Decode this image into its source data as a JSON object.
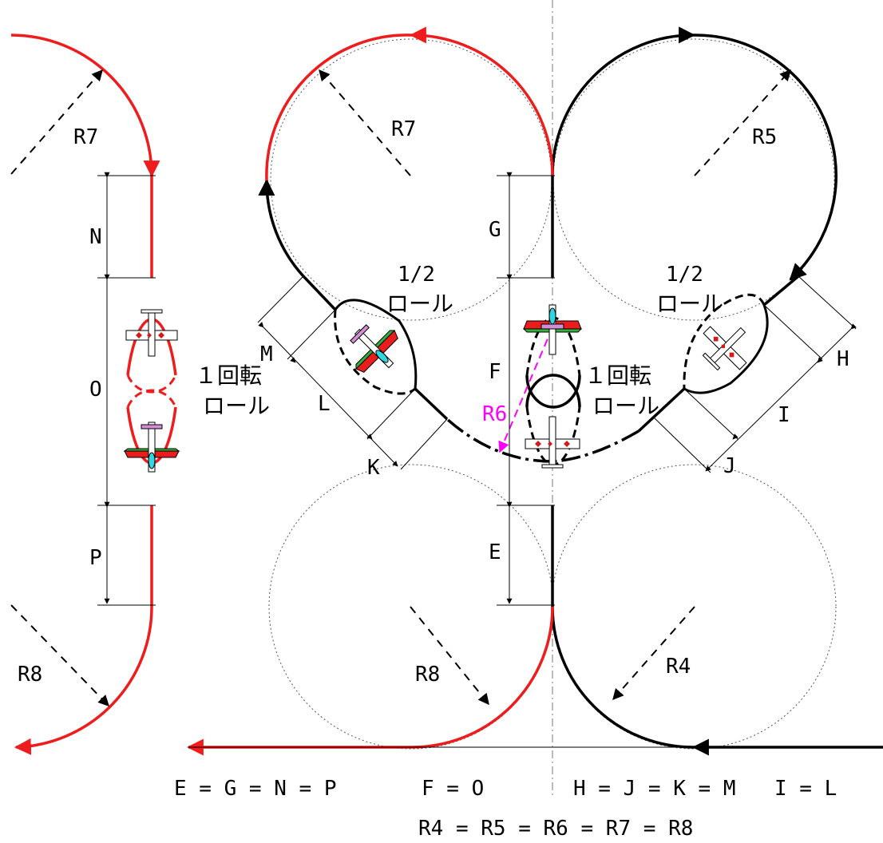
{
  "labels": {
    "E": "E",
    "F": "F",
    "G": "G",
    "H": "H",
    "I": "I",
    "J": "J",
    "K": "K",
    "L": "L",
    "M": "M",
    "N": "N",
    "O": "O",
    "P": "P"
  },
  "radii": {
    "R4": "R4",
    "R5": "R5",
    "R6": "R6",
    "R7": "R7",
    "R8": "R8"
  },
  "maneuvers": {
    "half_roll_top": "1/2",
    "half_roll_bottom": "ロール",
    "full_roll_top": "１回転",
    "full_roll_bottom": "ロール"
  },
  "equations": {
    "eq1": "E = G = N = P",
    "eq2": "F = O",
    "eq3": "H = J = K = M",
    "eq4": "I = L",
    "eq5": "R4 = R5 = R6 = R7 = R8"
  },
  "colors": {
    "red_path": "#ee1c1c",
    "black_path": "#000000",
    "r6_magenta": "#ff00ff"
  }
}
